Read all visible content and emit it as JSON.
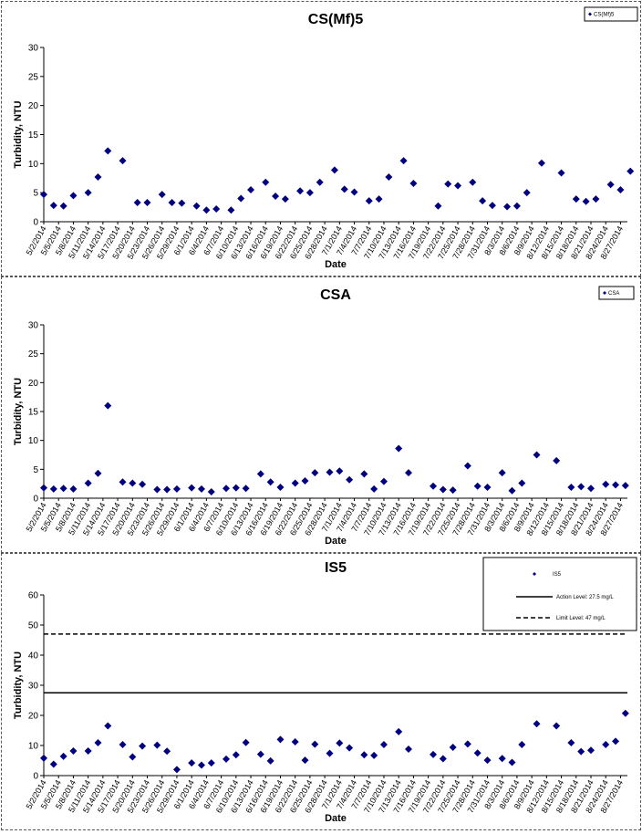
{
  "chart_data": [
    {
      "type": "scatter",
      "title": "CS(Mf)5",
      "xlabel": "Date",
      "ylabel": "Turbidity, NTU",
      "ylim": [
        0,
        30
      ],
      "yticks": [
        0,
        5,
        10,
        15,
        20,
        25,
        30
      ],
      "xticks": [
        "5/2/2014",
        "5/5/2014",
        "5/8/2014",
        "5/11/2014",
        "5/14/2014",
        "5/17/2014",
        "5/20/2014",
        "5/23/2014",
        "5/26/2014",
        "5/29/2014",
        "6/1/2014",
        "6/4/2014",
        "6/7/2014",
        "6/10/2014",
        "6/13/2014",
        "6/16/2014",
        "6/19/2014",
        "6/22/2014",
        "6/25/2014",
        "6/28/2014",
        "7/1/2014",
        "7/4/2014",
        "7/7/2014",
        "7/10/2014",
        "7/13/2014",
        "7/16/2014",
        "7/19/2014",
        "7/22/2014",
        "7/25/2014",
        "7/28/2014",
        "7/31/2014",
        "8/3/2014",
        "8/6/2014",
        "8/9/2014",
        "8/12/2014",
        "8/15/2014",
        "8/18/2014",
        "8/21/2014",
        "8/24/2014",
        "8/27/2014"
      ],
      "grid": false,
      "legend_position": "top-right",
      "series": [
        {
          "name": "CS(Mf)5",
          "color": "#000080",
          "x": [
            "5/2/2014",
            "5/4/2014",
            "5/6/2014",
            "5/8/2014",
            "5/11/2014",
            "5/13/2014",
            "5/15/2014",
            "5/18/2014",
            "5/21/2014",
            "5/23/2014",
            "5/26/2014",
            "5/28/2014",
            "5/30/2014",
            "6/2/2014",
            "6/4/2014",
            "6/6/2014",
            "6/9/2014",
            "6/11/2014",
            "6/13/2014",
            "6/16/2014",
            "6/18/2014",
            "6/20/2014",
            "6/23/2014",
            "6/25/2014",
            "6/27/2014",
            "6/30/2014",
            "7/2/2014",
            "7/4/2014",
            "7/7/2014",
            "7/9/2014",
            "7/11/2014",
            "7/14/2014",
            "7/16/2014",
            "7/21/2014",
            "7/23/2014",
            "7/25/2014",
            "7/28/2014",
            "7/30/2014",
            "8/1/2014",
            "8/4/2014",
            "8/6/2014",
            "8/8/2014",
            "8/11/2014",
            "8/15/2014",
            "8/18/2014",
            "8/20/2014",
            "8/22/2014",
            "8/25/2014",
            "8/27/2014",
            "8/29/2014"
          ],
          "y": [
            4.7,
            2.8,
            2.7,
            4.5,
            5,
            7.7,
            12.2,
            10.5,
            3.3,
            3.3,
            4.7,
            3.3,
            3.2,
            2.7,
            2,
            2.2,
            2,
            4,
            5.5,
            6.8,
            4.4,
            3.9,
            5.3,
            5,
            6.8,
            8.9,
            5.6,
            5.1,
            3.6,
            3.9,
            7.7,
            10.5,
            6.6,
            2.7,
            6.5,
            6.2,
            6.8,
            3.6,
            2.8,
            2.6,
            2.7,
            5,
            10.1,
            8.4,
            3.9,
            3.5,
            3.9,
            6.4,
            5.5,
            8.7
          ]
        }
      ]
    },
    {
      "type": "scatter",
      "title": "CSA",
      "xlabel": "Date",
      "ylabel": "Turbidity, NTU",
      "ylim": [
        0,
        30
      ],
      "yticks": [
        0,
        5,
        10,
        15,
        20,
        25,
        30
      ],
      "xticks": [
        "5/2/2014",
        "5/5/2014",
        "5/8/2014",
        "5/11/2014",
        "5/14/2014",
        "5/17/2014",
        "5/20/2014",
        "5/23/2014",
        "5/26/2014",
        "5/29/2014",
        "6/1/2014",
        "6/4/2014",
        "6/7/2014",
        "6/10/2014",
        "6/13/2014",
        "6/16/2014",
        "6/19/2014",
        "6/22/2014",
        "6/25/2014",
        "6/28/2014",
        "7/1/2014",
        "7/4/2014",
        "7/7/2014",
        "7/10/2014",
        "7/13/2014",
        "7/16/2014",
        "7/19/2014",
        "7/22/2014",
        "7/25/2014",
        "7/28/2014",
        "7/31/2014",
        "8/3/2014",
        "8/6/2014",
        "8/9/2014",
        "8/12/2014",
        "8/15/2014",
        "8/18/2014",
        "8/21/2014",
        "8/24/2014",
        "8/27/2014"
      ],
      "grid": false,
      "legend_position": "top-right",
      "series": [
        {
          "name": "CSA",
          "color": "#000080",
          "x": [
            "5/2/2014",
            "5/4/2014",
            "5/6/2014",
            "5/8/2014",
            "5/11/2014",
            "5/13/2014",
            "5/15/2014",
            "5/18/2014",
            "5/20/2014",
            "5/22/2014",
            "5/25/2014",
            "5/27/2014",
            "5/29/2014",
            "6/1/2014",
            "6/3/2014",
            "6/5/2014",
            "6/8/2014",
            "6/10/2014",
            "6/12/2014",
            "6/15/2014",
            "6/17/2014",
            "6/19/2014",
            "6/22/2014",
            "6/24/2014",
            "6/26/2014",
            "6/29/2014",
            "7/1/2014",
            "7/3/2014",
            "7/6/2014",
            "7/8/2014",
            "7/10/2014",
            "7/13/2014",
            "7/15/2014",
            "7/20/2014",
            "7/22/2014",
            "7/24/2014",
            "7/27/2014",
            "7/29/2014",
            "7/31/2014",
            "8/3/2014",
            "8/5/2014",
            "8/7/2014",
            "8/10/2014",
            "8/14/2014",
            "8/17/2014",
            "8/19/2014",
            "8/21/2014",
            "8/24/2014",
            "8/26/2014",
            "8/28/2014"
          ],
          "y": [
            1.8,
            1.6,
            1.7,
            1.6,
            2.6,
            4.3,
            16,
            2.8,
            2.6,
            2.4,
            1.5,
            1.5,
            1.6,
            1.8,
            1.6,
            1.1,
            1.7,
            1.8,
            1.7,
            4.2,
            2.8,
            1.9,
            2.6,
            3,
            4.4,
            4.5,
            4.7,
            3.2,
            4.2,
            1.6,
            2.9,
            8.6,
            4.4,
            2.1,
            1.5,
            1.4,
            5.6,
            2.1,
            1.9,
            4.4,
            1.3,
            2.6,
            7.5,
            6.5,
            1.9,
            2,
            1.7,
            2.4,
            2.3,
            2.2
          ]
        }
      ]
    },
    {
      "type": "scatter",
      "title": "IS5",
      "xlabel": "Date",
      "ylabel": "Turbidity, NTU",
      "ylim": [
        0,
        60
      ],
      "yticks": [
        0,
        10,
        20,
        30,
        40,
        50,
        60
      ],
      "xticks": [
        "5/2/2014",
        "5/5/2014",
        "5/8/2014",
        "5/11/2014",
        "5/14/2014",
        "5/17/2014",
        "5/20/2014",
        "5/23/2014",
        "5/26/2014",
        "5/29/2014",
        "6/1/2014",
        "6/4/2014",
        "6/7/2014",
        "6/10/2014",
        "6/13/2014",
        "6/16/2014",
        "6/19/2014",
        "6/22/2014",
        "6/25/2014",
        "6/28/2014",
        "7/1/2014",
        "7/4/2014",
        "7/7/2014",
        "7/10/2014",
        "7/13/2014",
        "7/16/2014",
        "7/19/2014",
        "7/22/2014",
        "7/25/2014",
        "7/28/2014",
        "7/31/2014",
        "8/3/2014",
        "8/6/2014",
        "8/9/2014",
        "8/12/2014",
        "8/15/2014",
        "8/18/2014",
        "8/21/2014",
        "8/24/2014",
        "8/27/2014"
      ],
      "grid": false,
      "legend_position": "top-right",
      "series": [
        {
          "name": "IS5",
          "color": "#000080",
          "x": [
            "5/2/2014",
            "5/4/2014",
            "5/6/2014",
            "5/8/2014",
            "5/11/2014",
            "5/13/2014",
            "5/15/2014",
            "5/18/2014",
            "5/20/2014",
            "5/22/2014",
            "5/25/2014",
            "5/27/2014",
            "5/29/2014",
            "6/1/2014",
            "6/3/2014",
            "6/5/2014",
            "6/8/2014",
            "6/10/2014",
            "6/12/2014",
            "6/15/2014",
            "6/17/2014",
            "6/19/2014",
            "6/22/2014",
            "6/24/2014",
            "6/26/2014",
            "6/29/2014",
            "7/1/2014",
            "7/3/2014",
            "7/6/2014",
            "7/8/2014",
            "7/10/2014",
            "7/13/2014",
            "7/15/2014",
            "7/20/2014",
            "7/22/2014",
            "7/24/2014",
            "7/27/2014",
            "7/29/2014",
            "7/31/2014",
            "8/3/2014",
            "8/5/2014",
            "8/7/2014",
            "8/10/2014",
            "8/14/2014",
            "8/17/2014",
            "8/19/2014",
            "8/21/2014",
            "8/24/2014",
            "8/26/2014",
            "8/28/2014"
          ],
          "y": [
            5.8,
            3.8,
            6.4,
            8.2,
            8.2,
            10.9,
            16.5,
            10.3,
            6.2,
            9.8,
            10.1,
            8.1,
            2,
            4.2,
            3.5,
            4.2,
            5.5,
            6.9,
            11,
            7.1,
            4.9,
            12,
            11.2,
            5.1,
            10.4,
            7.4,
            10.8,
            9.2,
            6.9,
            6.7,
            10.3,
            14.6,
            8.8,
            7,
            5.6,
            9.4,
            10.5,
            7.5,
            5.1,
            5.7,
            4.4,
            10.3,
            17.2,
            16.5,
            10.9,
            8,
            8.4,
            10.3,
            11.4,
            20.7
          ]
        }
      ],
      "reference_lines": [
        {
          "name": "Action Level: 27.5 mg/L",
          "y": 27.5,
          "style": "solid",
          "color": "#000000"
        },
        {
          "name": "Limit Level: 47 mg/L",
          "y": 47,
          "style": "dashed",
          "color": "#000000"
        }
      ]
    }
  ]
}
